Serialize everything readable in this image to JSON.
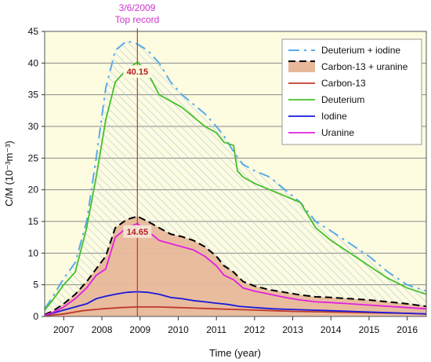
{
  "chart_data": {
    "type": "line",
    "xlabel": "Time (year)",
    "ylabel": "C/M (10⁻³m⁻³)",
    "xlim": [
      2006.5,
      2016.5
    ],
    "ylim": [
      0,
      45
    ],
    "x_ticks": [
      2007,
      2008,
      2009,
      2010,
      2011,
      2012,
      2013,
      2014,
      2015,
      2016
    ],
    "y_ticks": [
      0,
      5,
      10,
      15,
      20,
      25,
      30,
      35,
      40,
      45
    ],
    "grid": "horizontal",
    "legend_position": "top-right",
    "annotation": {
      "date": "3/6/2009",
      "label": "Top record",
      "x": 2008.93,
      "deuterium_value": "40.15",
      "carbon_uranine_value": "14.65",
      "deuterium_y": 40.15,
      "carbon_uranine_y": 14.65
    },
    "series": [
      {
        "name": "Deuterium + iodine",
        "kind": "dashed-area",
        "color": "#5aabe8",
        "x": [
          2006.5,
          2006.7,
          2007.0,
          2007.3,
          2007.6,
          2007.85,
          2008.1,
          2008.35,
          2008.65,
          2008.93,
          2009.2,
          2009.5,
          2009.8,
          2010.1,
          2010.4,
          2010.7,
          2011.0,
          2011.2,
          2011.45,
          2011.7,
          2012.0,
          2012.4,
          2012.8,
          2013.2,
          2013.6,
          2014.0,
          2014.5,
          2015.0,
          2015.5,
          2016.0,
          2016.5
        ],
        "values": [
          1.2,
          3.0,
          6.0,
          8.5,
          15.0,
          25.0,
          36.0,
          42.0,
          43.5,
          43.0,
          42.0,
          40.0,
          37.0,
          35.0,
          33.5,
          32.0,
          30.0,
          28.5,
          26.0,
          24.0,
          23.0,
          22.0,
          20.0,
          18.0,
          15.0,
          13.5,
          11.5,
          9.5,
          7.0,
          5.0,
          4.0
        ]
      },
      {
        "name": "Carbon-13 + uranine",
        "kind": "filled-area",
        "color": "#e8b89a",
        "line_color": "#000000",
        "x": [
          2006.5,
          2006.7,
          2007.0,
          2007.3,
          2007.6,
          2007.85,
          2008.1,
          2008.35,
          2008.65,
          2008.93,
          2009.2,
          2009.5,
          2009.8,
          2010.1,
          2010.4,
          2010.7,
          2011.0,
          2011.2,
          2011.45,
          2011.7,
          2012.0,
          2012.4,
          2012.8,
          2013.2,
          2013.6,
          2014.0,
          2014.5,
          2015.0,
          2015.5,
          2016.0,
          2016.5
        ],
        "values": [
          0.3,
          0.8,
          2.0,
          3.5,
          5.5,
          7.5,
          9.5,
          14.0,
          15.3,
          15.8,
          15.0,
          14.0,
          13.0,
          12.6,
          12.0,
          11.0,
          9.5,
          8.0,
          7.0,
          5.5,
          4.8,
          4.2,
          3.8,
          3.4,
          3.1,
          3.0,
          2.8,
          2.6,
          2.3,
          2.0,
          1.6
        ]
      },
      {
        "name": "Carbon-13",
        "kind": "line",
        "color": "#c0392b",
        "x": [
          2006.5,
          2007.0,
          2007.5,
          2008.0,
          2008.5,
          2008.93,
          2009.5,
          2010.0,
          2010.5,
          2011.0,
          2011.5,
          2012.0,
          2012.5,
          2013.0,
          2014.0,
          2015.0,
          2016.0,
          2016.5
        ],
        "values": [
          0.1,
          0.4,
          0.9,
          1.2,
          1.4,
          1.5,
          1.5,
          1.4,
          1.3,
          1.2,
          1.1,
          1.0,
          0.9,
          0.8,
          0.7,
          0.6,
          0.5,
          0.4
        ]
      },
      {
        "name": "Deuterium",
        "kind": "line",
        "color": "#44c02b",
        "x": [
          2006.5,
          2006.7,
          2007.0,
          2007.3,
          2007.6,
          2007.85,
          2008.1,
          2008.35,
          2008.65,
          2008.93,
          2009.2,
          2009.5,
          2009.8,
          2010.1,
          2010.4,
          2010.7,
          2011.0,
          2011.2,
          2011.45,
          2011.55,
          2011.7,
          2012.0,
          2012.4,
          2012.8,
          2013.2,
          2013.6,
          2014.0,
          2014.5,
          2015.0,
          2015.5,
          2016.0,
          2016.5
        ],
        "values": [
          1.0,
          2.5,
          5.0,
          7.0,
          14.0,
          22.0,
          31.0,
          37.0,
          39.0,
          40.15,
          38.5,
          35.0,
          34.0,
          33.0,
          31.5,
          30.0,
          29.0,
          27.5,
          27.0,
          23.0,
          22.0,
          21.0,
          20.0,
          19.0,
          18.0,
          14.0,
          12.0,
          10.0,
          8.0,
          6.0,
          4.5,
          3.5
        ]
      },
      {
        "name": "Iodine",
        "kind": "line",
        "color": "#1a1adb",
        "x": [
          2006.5,
          2006.7,
          2007.0,
          2007.3,
          2007.6,
          2007.85,
          2008.1,
          2008.35,
          2008.65,
          2008.93,
          2009.2,
          2009.5,
          2009.8,
          2010.1,
          2010.4,
          2010.7,
          2011.0,
          2011.3,
          2011.6,
          2012.0,
          2012.5,
          2013.0,
          2013.5,
          2014.0,
          2014.5,
          2015.0,
          2015.5,
          2016.0,
          2016.5
        ],
        "values": [
          0.2,
          0.5,
          1.0,
          1.5,
          2.0,
          2.8,
          3.2,
          3.5,
          3.8,
          3.9,
          3.8,
          3.5,
          3.0,
          2.8,
          2.5,
          2.3,
          2.1,
          1.9,
          1.6,
          1.4,
          1.2,
          1.1,
          1.0,
          0.9,
          0.8,
          0.7,
          0.6,
          0.5,
          0.4
        ]
      },
      {
        "name": "Uranine",
        "kind": "line",
        "color": "#e020e0",
        "x": [
          2006.5,
          2006.7,
          2007.0,
          2007.3,
          2007.6,
          2007.85,
          2008.1,
          2008.35,
          2008.65,
          2008.93,
          2009.2,
          2009.5,
          2009.8,
          2010.1,
          2010.4,
          2010.7,
          2011.0,
          2011.2,
          2011.45,
          2011.7,
          2012.0,
          2012.4,
          2012.8,
          2013.2,
          2013.6,
          2014.0,
          2014.5,
          2015.0,
          2015.5,
          2016.0,
          2016.5
        ],
        "values": [
          0.2,
          0.6,
          1.5,
          2.8,
          4.5,
          6.5,
          7.5,
          12.5,
          14.0,
          14.65,
          13.5,
          12.0,
          11.5,
          11.0,
          10.5,
          9.5,
          8.0,
          6.5,
          5.8,
          4.5,
          4.0,
          3.5,
          3.0,
          2.6,
          2.3,
          2.2,
          2.0,
          1.8,
          1.6,
          1.4,
          1.2
        ]
      }
    ]
  }
}
